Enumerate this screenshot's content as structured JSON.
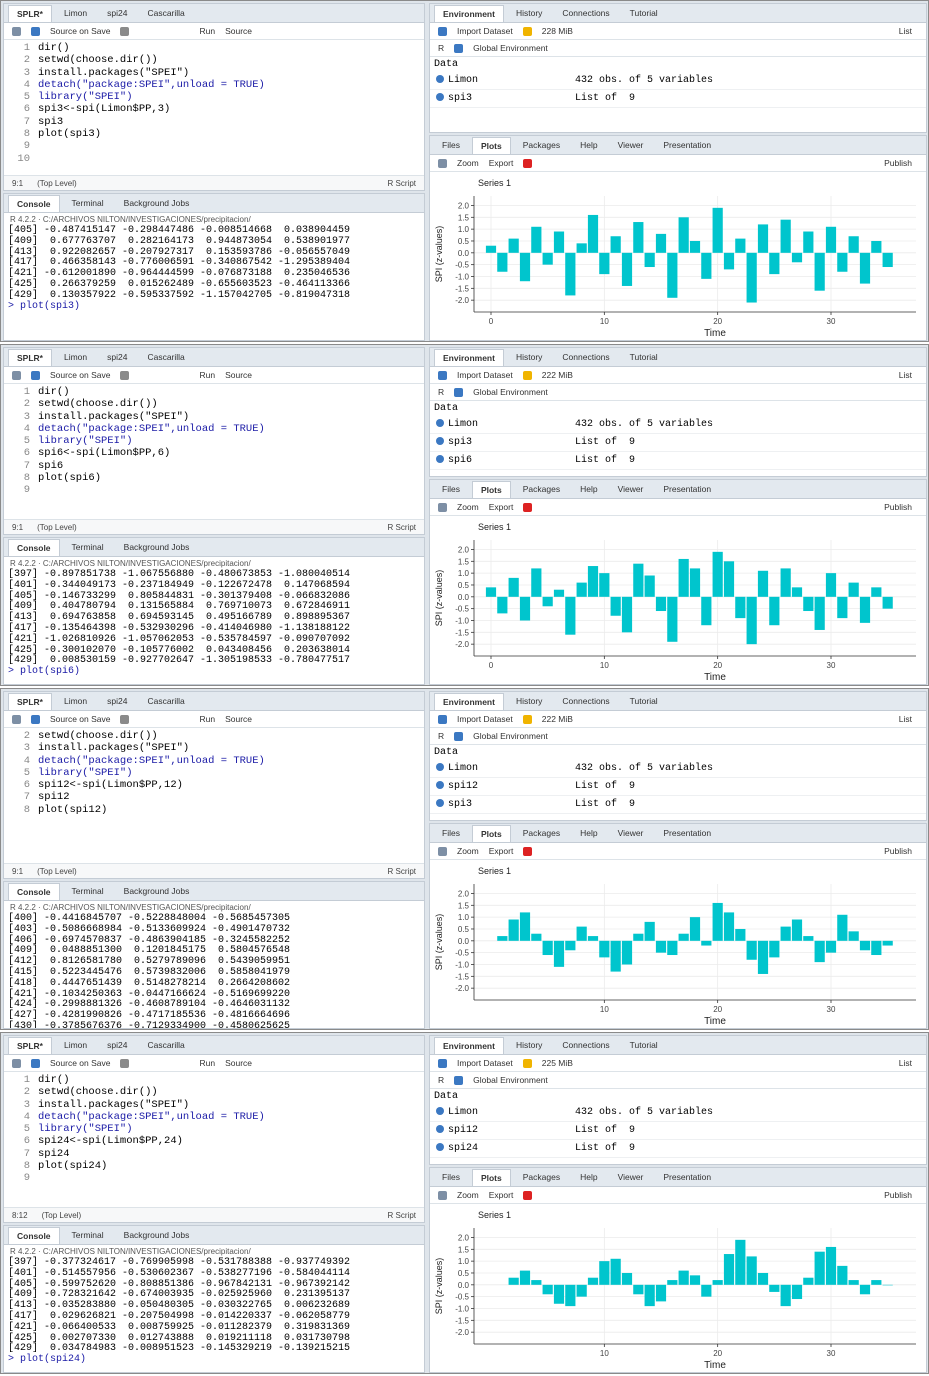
{
  "ui": {
    "source_tabs": [
      "SPLR*",
      "Limon",
      "spi24",
      "Cascarilla"
    ],
    "source_on_save": "Source on Save",
    "run": "Run",
    "source": "Source",
    "console_tabs": [
      "Console",
      "Terminal",
      "Background Jobs"
    ],
    "env_tabs": [
      "Environment",
      "History",
      "Connections",
      "Tutorial"
    ],
    "import": "Import Dataset",
    "list": "List",
    "r": "R",
    "global": "Global Environment",
    "plot_tabs": [
      "Files",
      "Plots",
      "Packages",
      "Help",
      "Viewer",
      "Presentation"
    ],
    "zoom": "Zoom",
    "export": "Export",
    "publish": "Publish",
    "path": "R 4.2.2 · C:/ARCHIVOS NILTON/INVESTIGACIONES/precipitacion/"
  },
  "panels": [
    {
      "source": {
        "lines": [
          {
            "n": 1,
            "code": "dir()"
          },
          {
            "n": 2,
            "code": "setwd(choose.dir())"
          },
          {
            "n": 3,
            "code": "install.packages(\"SPEI\")"
          },
          {
            "n": 4,
            "code": "detach(\"package:SPEI\",unload = TRUE)",
            "color": "#1a1aa6"
          },
          {
            "n": 5,
            "code": "library(\"SPEI\")",
            "color": "#1a1aa6"
          },
          {
            "n": 6,
            "code": "spi3<-spi(Limon$PP,3)"
          },
          {
            "n": 7,
            "code": "spi3"
          },
          {
            "n": 8,
            "code": "plot(spi3)"
          },
          {
            "n": 9
          },
          {
            "n": 10
          }
        ],
        "status_pos": "9:1",
        "status_scope": "(Top Level)",
        "status_type": "R Script"
      },
      "console": {
        "lines": [
          "[405] -0.487415147 -0.298447486 -0.008514668  0.038904459",
          "[409]  0.677763707  0.282164173  0.944873054  0.538901977",
          "[413]  0.922082657 -0.207927317  0.153593786 -0.056557049",
          "[417]  0.466358143 -0.776006591 -0.340867542 -1.295389404",
          "[421] -0.612001890 -0.964444599 -0.076873188  0.235046536",
          "[425]  0.266379259  0.015262489 -0.655603523 -0.464113366",
          "[429]  0.130357922 -0.595337592 -1.157042705 -0.819047318"
        ],
        "prompt": "> plot(spi3)"
      },
      "env": {
        "memory": "228 MiB",
        "section": "Data",
        "rows": [
          {
            "name": "Limon",
            "value": "432 obs. of 5 variables"
          },
          {
            "name": "spi3",
            "value": "List of  9"
          }
        ]
      },
      "chart_data": {
        "type": "bar",
        "title": "Series 1",
        "x_label": "Time",
        "y_label": "SPI (z-values)",
        "color": "#00c5cd",
        "grid": true,
        "xlim": [
          -1.5,
          37.5
        ],
        "ylim": [
          -2.5,
          2.4
        ],
        "xticks": [
          0,
          10,
          20,
          30
        ],
        "yticks": [
          {
            "value": 2,
            "label": "2.0"
          },
          1.5,
          {
            "value": 1,
            "label": "1.0"
          },
          0.5,
          {
            "value": 0,
            "label": "0.0"
          },
          -0.5,
          {
            "value": -1,
            "label": "-1.0"
          },
          -1.5,
          {
            "value": -2,
            "label": "-2.0"
          }
        ],
        "x": [
          0,
          1,
          2,
          3,
          4,
          5,
          6,
          7,
          8,
          9,
          10,
          11,
          12,
          13,
          14,
          15,
          16,
          17,
          18,
          19,
          20,
          21,
          22,
          23,
          24,
          25,
          26,
          27,
          28,
          29,
          30,
          31,
          32,
          33,
          34,
          35
        ],
        "values": [
          0.3,
          -0.8,
          0.6,
          -1.2,
          1.1,
          -0.5,
          0.9,
          -1.8,
          0.4,
          1.6,
          -0.9,
          0.7,
          -1.4,
          1.3,
          -0.6,
          0.8,
          -1.9,
          1.5,
          0.5,
          -1.1,
          1.9,
          -0.7,
          0.6,
          -2.1,
          1.2,
          -0.9,
          1.4,
          -0.4,
          0.9,
          -1.6,
          1.1,
          -0.8,
          0.7,
          -1.3,
          0.5,
          -0.6
        ]
      }
    },
    {
      "source": {
        "lines": [
          {
            "n": 1,
            "code": "dir()"
          },
          {
            "n": 2,
            "code": "setwd(choose.dir())"
          },
          {
            "n": 3,
            "code": "install.packages(\"SPEI\")"
          },
          {
            "n": 4,
            "code": "detach(\"package:SPEI\",unload = TRUE)",
            "color": "#1a1aa6"
          },
          {
            "n": 5,
            "code": "library(\"SPEI\")",
            "color": "#1a1aa6"
          },
          {
            "n": 6,
            "code": "spi6<-spi(Limon$PP,6)"
          },
          {
            "n": 7,
            "code": "spi6"
          },
          {
            "n": 8,
            "code": "plot(spi6)"
          },
          {
            "n": 9
          }
        ],
        "status_pos": "9:1",
        "status_scope": "(Top Level)",
        "status_type": "R Script"
      },
      "console": {
        "lines": [
          "[397] -0.897851738 -1.067556880 -0.480673853 -1.080040514",
          "[401] -0.344049173 -0.237184949 -0.122672478  0.147068594",
          "[405] -0.146733299  0.805844831 -0.301379408 -0.066832086",
          "[409]  0.404780794  0.131565884  0.769710073  0.672846911",
          "[413]  0.694763858  0.694593145  0.495166789  0.898895367",
          "[417] -0.135464398 -0.532930296 -0.414046980 -1.138188122",
          "[421] -1.026810926 -1.057062053 -0.535784597 -0.090707092",
          "[425] -0.300102070 -0.105776002  0.043408456  0.203638014",
          "[429]  0.008530159 -0.927702647 -1.305198533 -0.780477517"
        ],
        "prompt": "> plot(spi6)"
      },
      "env": {
        "memory": "222 MiB",
        "section": "Data",
        "rows": [
          {
            "name": "Limon",
            "value": "432 obs. of 5 variables"
          },
          {
            "name": "spi3",
            "value": "List of  9"
          },
          {
            "name": "spi6",
            "value": "List of  9"
          }
        ]
      },
      "chart_data": {
        "type": "bar",
        "title": "Series 1",
        "x_label": "Time",
        "y_label": "SPI (z-values)",
        "color": "#00c5cd",
        "grid": true,
        "xlim": [
          -1.5,
          37.5
        ],
        "ylim": [
          -2.5,
          2.4
        ],
        "xticks": [
          0,
          10,
          20,
          30
        ],
        "yticks": [
          {
            "value": 2,
            "label": "2.0"
          },
          1.5,
          {
            "value": 1,
            "label": "1.0"
          },
          0.5,
          {
            "value": 0,
            "label": "0.0"
          },
          -0.5,
          {
            "value": -1,
            "label": "-1.0"
          },
          -1.5,
          {
            "value": -2,
            "label": "-2.0"
          }
        ],
        "x": [
          0,
          1,
          2,
          3,
          4,
          5,
          6,
          7,
          8,
          9,
          10,
          11,
          12,
          13,
          14,
          15,
          16,
          17,
          18,
          19,
          20,
          21,
          22,
          23,
          24,
          25,
          26,
          27,
          28,
          29,
          30,
          31,
          32,
          33,
          34,
          35
        ],
        "values": [
          0.4,
          -0.7,
          0.8,
          -1.0,
          1.2,
          -0.4,
          0.3,
          -1.6,
          0.6,
          1.3,
          1.0,
          -0.8,
          -1.5,
          1.4,
          0.9,
          -0.6,
          -1.9,
          1.6,
          1.2,
          -1.2,
          1.9,
          1.5,
          -0.9,
          -2.0,
          1.1,
          -1.2,
          1.2,
          0.4,
          -0.6,
          -1.4,
          1.0,
          -0.9,
          0.6,
          -1.1,
          0.4,
          -0.5
        ]
      }
    },
    {
      "source": {
        "lines": [
          {
            "n": 2,
            "code": "setwd(choose.dir())"
          },
          {
            "n": 3,
            "code": "install.packages(\"SPEI\")"
          },
          {
            "n": 4,
            "code": "detach(\"package:SPEI\",unload = TRUE)",
            "color": "#1a1aa6"
          },
          {
            "n": 5,
            "code": "library(\"SPEI\")",
            "color": "#1a1aa6"
          },
          {
            "n": 6,
            "code": "spi12<-spi(Limon$PP,12)"
          },
          {
            "n": 7,
            "code": "spi12"
          },
          {
            "n": 8,
            "code": "plot(spi12)"
          }
        ],
        "status_pos": "9:1",
        "status_scope": "(Top Level)",
        "status_type": "R Script"
      },
      "console": {
        "lines": [
          "[400] -0.4416845707 -0.5228848004 -0.5685457305",
          "[403] -0.5086668984 -0.5133609924 -0.4901470732",
          "[406] -0.6974570837 -0.4863904185 -0.3245582252",
          "[409]  0.0488851300  0.1201845175  0.5804576548",
          "[412]  0.8126581780  0.5279789096  0.5439059951",
          "[415]  0.5223445476  0.5739832006  0.5858041979",
          "[418]  0.4447651439  0.5148278214  0.2664208602",
          "[421] -0.1034250363 -0.0447166624 -0.5169699220",
          "[424] -0.2998881326 -0.4608789104 -0.4646031132",
          "[427] -0.4281990826 -0.4717185536 -0.4816664696",
          "[430] -0.3785676376 -0.7129334900 -0.4580625625"
        ],
        "prompt": "> plot(spi12)"
      },
      "env": {
        "memory": "222 MiB",
        "section": "Data",
        "rows": [
          {
            "name": "Limon",
            "value": "432 obs. of 5 variables"
          },
          {
            "name": "spi12",
            "value": "List of  9"
          },
          {
            "name": "spi3",
            "value": "List of  9"
          }
        ]
      },
      "chart_data": {
        "type": "bar",
        "title": "Series 1",
        "x_label": "Time",
        "y_label": "SPI (z-values)",
        "color": "#00c5cd",
        "grid": true,
        "xlim": [
          -1.5,
          37.5
        ],
        "ylim": [
          -2.5,
          2.4
        ],
        "xticks": [
          10,
          20,
          30
        ],
        "yticks": [
          {
            "value": 2,
            "label": "2.0"
          },
          1.5,
          {
            "value": 1,
            "label": "1.0"
          },
          0.5,
          {
            "value": 0,
            "label": "0.0"
          },
          -0.5,
          {
            "value": -1,
            "label": "-1.0"
          },
          -1.5,
          {
            "value": -2,
            "label": "-2.0"
          }
        ],
        "x": [
          0,
          1,
          2,
          3,
          4,
          5,
          6,
          7,
          8,
          9,
          10,
          11,
          12,
          13,
          14,
          15,
          16,
          17,
          18,
          19,
          20,
          21,
          22,
          23,
          24,
          25,
          26,
          27,
          28,
          29,
          30,
          31,
          32,
          33,
          34,
          35
        ],
        "values": [
          null,
          0.2,
          0.9,
          1.2,
          0.3,
          -0.6,
          -1.1,
          -0.4,
          0.6,
          0.2,
          -0.7,
          -1.3,
          -1.0,
          0.3,
          0.8,
          -0.5,
          -0.6,
          0.3,
          1.0,
          -0.2,
          1.6,
          1.2,
          0.5,
          -0.8,
          -1.4,
          -0.7,
          0.6,
          0.9,
          0.2,
          -0.9,
          -0.5,
          1.1,
          0.4,
          -0.4,
          -0.6,
          -0.2
        ]
      }
    },
    {
      "source": {
        "lines": [
          {
            "n": 1,
            "code": "dir()"
          },
          {
            "n": 2,
            "code": "setwd(choose.dir())"
          },
          {
            "n": 3,
            "code": "install.packages(\"SPEI\")"
          },
          {
            "n": 4,
            "code": "detach(\"package:SPEI\",unload = TRUE)",
            "color": "#1a1aa6"
          },
          {
            "n": 5,
            "code": "library(\"SPEI\")",
            "color": "#1a1aa6"
          },
          {
            "n": 6,
            "code": "spi24<-spi(Limon$PP,24)"
          },
          {
            "n": 7,
            "code": "spi24"
          },
          {
            "n": 8,
            "code": "plot(spi24)"
          },
          {
            "n": 9
          }
        ],
        "status_pos": "8:12",
        "status_scope": "(Top Level)",
        "status_type": "R Script"
      },
      "console": {
        "lines": [
          "[397] -0.377324617 -0.769905998 -0.531788388 -0.937749392",
          "[401] -0.514557956 -0.530602367 -0.538277196 -0.584044114",
          "[405] -0.599752620 -0.808851386 -0.967842131 -0.967392142",
          "[409] -0.728321642 -0.674003935 -0.025925960  0.231395137",
          "[413] -0.035283880 -0.050480305 -0.030322765  0.006232689",
          "[417]  0.029626821 -0.207504998 -0.014220337 -0.062058779",
          "[421] -0.066400533  0.008759925 -0.011282379  0.319831369",
          "[425]  0.002707330  0.012743888  0.019211118  0.031730798",
          "[429]  0.034784983 -0.008951523 -0.145329219 -0.139215215"
        ],
        "prompt": "> plot(spi24)"
      },
      "env": {
        "memory": "225 MiB",
        "section": "Data",
        "rows": [
          {
            "name": "Limon",
            "value": "432 obs. of 5 variables"
          },
          {
            "name": "spi12",
            "value": "List of  9"
          },
          {
            "name": "spi24",
            "value": "List of  9"
          }
        ]
      },
      "chart_data": {
        "type": "bar",
        "title": "Series 1",
        "x_label": "Time",
        "y_label": "SPI (z-values)",
        "color": "#00c5cd",
        "grid": true,
        "xlim": [
          -1.5,
          37.5
        ],
        "ylim": [
          -2.5,
          2.4
        ],
        "xticks": [
          10,
          20,
          30
        ],
        "yticks": [
          {
            "value": 2,
            "label": "2.0"
          },
          1.5,
          {
            "value": 1,
            "label": "1.0"
          },
          0.5,
          {
            "value": 0,
            "label": "0.0"
          },
          -0.5,
          {
            "value": -1,
            "label": "-1.0"
          },
          -1.5,
          {
            "value": -2,
            "label": "-2.0"
          }
        ],
        "x": [
          0,
          1,
          2,
          3,
          4,
          5,
          6,
          7,
          8,
          9,
          10,
          11,
          12,
          13,
          14,
          15,
          16,
          17,
          18,
          19,
          20,
          21,
          22,
          23,
          24,
          25,
          26,
          27,
          28,
          29,
          30,
          31,
          32,
          33,
          34,
          35
        ],
        "values": [
          null,
          null,
          0.3,
          0.6,
          0.2,
          -0.4,
          -0.8,
          -0.9,
          -0.5,
          0.3,
          1.0,
          1.1,
          0.5,
          -0.4,
          -0.9,
          -0.7,
          0.2,
          0.6,
          0.4,
          -0.5,
          0.2,
          1.3,
          1.9,
          1.2,
          0.5,
          -0.3,
          -0.9,
          -0.6,
          0.3,
          1.4,
          1.6,
          0.8,
          0.2,
          -0.4,
          0.2,
          0.0
        ]
      }
    }
  ]
}
